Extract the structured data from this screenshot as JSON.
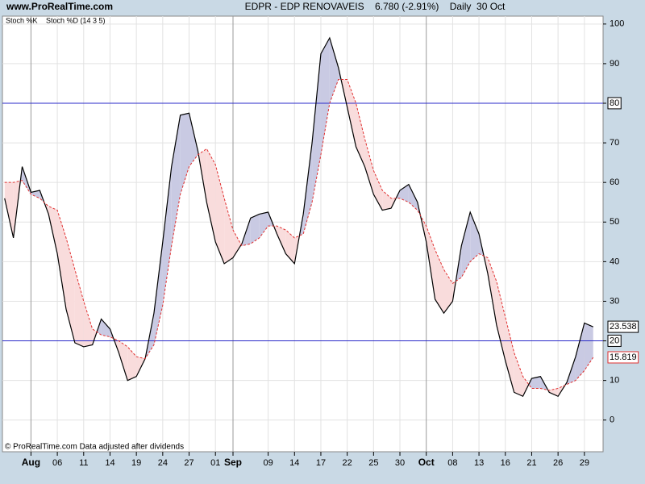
{
  "chart_data": {
    "type": "line",
    "site": "www.ProRealTime.com",
    "title": "EDPR - EDP RENOVAVEIS    6.780 (-2.91%)    Daily  30 Oct",
    "footer": "© ProRealTime.com  Data adjusted after dividends",
    "categories": [
      null,
      null,
      null,
      "Aug",
      null,
      null,
      "06",
      null,
      null,
      "11",
      null,
      null,
      "14",
      null,
      null,
      "19",
      null,
      null,
      "24",
      null,
      null,
      "27",
      null,
      null,
      "01",
      null,
      "Sep",
      null,
      null,
      null,
      "09",
      null,
      null,
      "14",
      null,
      null,
      "17",
      null,
      null,
      "22",
      null,
      null,
      "25",
      null,
      null,
      "30",
      null,
      null,
      "Oct",
      null,
      null,
      "08",
      null,
      null,
      "13",
      null,
      null,
      "16",
      null,
      null,
      "21",
      null,
      null,
      "26",
      null,
      null,
      "29",
      null
    ],
    "series": [
      {
        "name": "Stoch %K",
        "color": "#000000",
        "dashed": false,
        "values": [
          56,
          46,
          64,
          57.5,
          58,
          52,
          42,
          28,
          19.5,
          18.5,
          19,
          25.5,
          23,
          17,
          10,
          11,
          15.5,
          27,
          45,
          64,
          77,
          77.5,
          68,
          55,
          45,
          39.5,
          41,
          44.5,
          51,
          52,
          52.5,
          47,
          42,
          39.5,
          52,
          70,
          92.5,
          96.5,
          89,
          79,
          69,
          64,
          57,
          53,
          53.5,
          58,
          59.5,
          55,
          45,
          30.5,
          27,
          30,
          44,
          52.5,
          47,
          37,
          24,
          15,
          7,
          6,
          10.5,
          11,
          7,
          6,
          9.5,
          16,
          24.5,
          23.538
        ]
      },
      {
        "name": "Stoch %D (14 3 5)",
        "color": "#e03030",
        "dashed": true,
        "values": [
          60,
          60,
          60.5,
          57,
          56,
          54,
          53,
          46,
          38,
          30,
          23,
          21.5,
          21,
          20,
          18.5,
          16,
          15.5,
          19,
          29,
          44,
          57,
          64,
          67,
          68.5,
          64.5,
          56,
          48,
          44,
          44.5,
          46,
          49,
          49,
          48,
          46,
          47,
          55,
          67,
          80,
          86,
          86,
          80,
          71,
          63,
          58,
          56,
          56,
          55,
          53,
          49,
          43,
          38,
          34.5,
          36,
          40,
          42,
          41,
          35,
          26,
          17,
          11,
          8,
          8,
          7.5,
          8,
          9,
          10,
          12.5,
          15.819
        ]
      }
    ],
    "fill_above": "#c9cae3",
    "fill_below": "#f9dcdc",
    "hlines": [
      80,
      20
    ],
    "hline_color": "#2a2ac8",
    "ylim": [
      -8,
      102
    ],
    "yticks": [
      0,
      10,
      20,
      30,
      40,
      50,
      60,
      70,
      80,
      90,
      100
    ],
    "grid": true
  }
}
